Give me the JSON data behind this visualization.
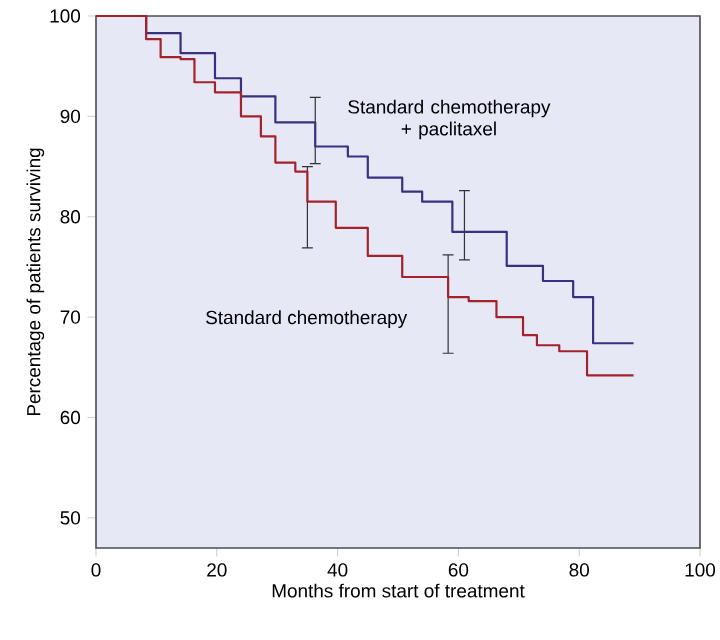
{
  "chart_data": {
    "type": "step",
    "xlabel": "Months from start of treatment",
    "ylabel": "Percentage of patients surviving",
    "xlim": [
      0,
      100
    ],
    "ylim": [
      47,
      100
    ],
    "xticks": [
      0,
      20,
      40,
      60,
      80,
      100
    ],
    "yticks": [
      50,
      60,
      70,
      80,
      90,
      100
    ],
    "grid": false,
    "legend": false,
    "marker": "none",
    "line_style": "solid",
    "series": [
      {
        "name": "Standard chemotherapy + paclitaxel",
        "color": "#3a3080",
        "x": [
          0,
          8.3,
          14,
          19.7,
          24,
          29.7,
          36.3,
          41.7,
          45,
          50.7,
          54,
          59,
          61,
          68,
          74,
          79,
          82.3,
          89
        ],
        "values": [
          100,
          98.3,
          96.3,
          93.8,
          92,
          89.4,
          87,
          86,
          83.9,
          82.5,
          81.5,
          78.5,
          78.5,
          75.1,
          73.6,
          72,
          67.4,
          67.4
        ],
        "errors": [
          null,
          null,
          null,
          null,
          null,
          null,
          [
            85.3,
            91.9
          ],
          null,
          null,
          null,
          null,
          null,
          [
            75.7,
            82.6
          ],
          null,
          null,
          null,
          null,
          null
        ]
      },
      {
        "name": "Standard chemotherapy",
        "color": "#a3222c",
        "x": [
          0,
          8.3,
          10.7,
          14,
          16.3,
          19.7,
          24,
          27.3,
          29.7,
          33,
          35,
          39.7,
          45,
          50.7,
          58.3,
          61.7,
          66.3,
          70.7,
          73,
          76.7,
          81.3,
          89
        ],
        "values": [
          100,
          97.7,
          95.9,
          95.7,
          93.4,
          92.4,
          90,
          88,
          85.4,
          84.5,
          81.5,
          78.9,
          76.1,
          74,
          72,
          71.6,
          70,
          68.2,
          67.2,
          66.6,
          64.2,
          64.2
        ],
        "errors": [
          null,
          null,
          null,
          null,
          null,
          null,
          null,
          null,
          null,
          null,
          [
            76.9,
            85
          ],
          null,
          null,
          null,
          [
            66.4,
            76.2
          ],
          null,
          null,
          null,
          null,
          null,
          null,
          null
        ]
      }
    ]
  }
}
